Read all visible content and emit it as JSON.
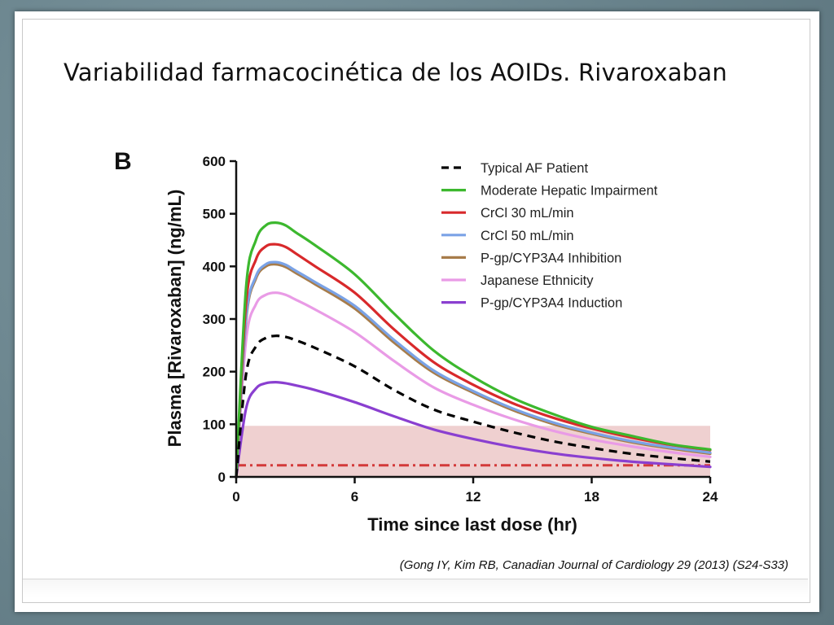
{
  "slide": {
    "title": "Variabilidad farmacocinética  de los AOIDs. Rivaroxaban",
    "citation": "(Gong IY, Kim RB, Canadian Journal of Cardiology 29 (2013) (S24-S33)"
  },
  "chart_data": {
    "type": "line",
    "panel_label": "B",
    "xlabel": "Time since last dose (hr)",
    "ylabel": "Plasma [Rivaroxaban] (ng/mL)",
    "xlim": [
      0,
      24
    ],
    "ylim": [
      0,
      600
    ],
    "xticks": [
      0,
      6,
      12,
      18,
      24
    ],
    "yticks": [
      0,
      100,
      200,
      300,
      400,
      500,
      600
    ],
    "grid": false,
    "legend_position": "top-right",
    "shaded_band": {
      "y_from": 0,
      "y_to": 97,
      "color": "#ecc8c8"
    },
    "reference_line": {
      "y": 22,
      "style": "dash-dot",
      "color": "#d33a3a"
    },
    "series": [
      {
        "name": "Typical AF Patient",
        "color": "#000000",
        "dashed": true,
        "x": [
          0,
          0.5,
          1,
          1.5,
          2,
          2.5,
          3,
          4,
          6,
          8,
          10,
          12,
          14,
          16,
          18,
          20,
          22,
          24
        ],
        "y": [
          0,
          195,
          248,
          264,
          268,
          266,
          260,
          245,
          210,
          165,
          128,
          105,
          85,
          68,
          55,
          44,
          36,
          29
        ]
      },
      {
        "name": "Moderate Hepatic Impairment",
        "color": "#3cb82e",
        "x": [
          0,
          0.5,
          1,
          1.5,
          2,
          2.5,
          3,
          4,
          6,
          8,
          10,
          12,
          14,
          16,
          18,
          20,
          22,
          24
        ],
        "y": [
          0,
          360,
          450,
          478,
          483,
          478,
          465,
          440,
          385,
          310,
          240,
          190,
          150,
          120,
          95,
          78,
          62,
          52
        ]
      },
      {
        "name": "CrCl 30 mL/min",
        "color": "#d8292b",
        "x": [
          0,
          0.5,
          1,
          1.5,
          2,
          2.5,
          3,
          4,
          6,
          8,
          10,
          12,
          14,
          16,
          18,
          20,
          22,
          24
        ],
        "y": [
          0,
          330,
          413,
          438,
          442,
          437,
          425,
          400,
          350,
          280,
          218,
          175,
          140,
          113,
          92,
          75,
          61,
          51
        ]
      },
      {
        "name": "CrCl 50 mL/min",
        "color": "#7aa2e6",
        "x": [
          0,
          0.5,
          1,
          1.5,
          2,
          2.5,
          3,
          4,
          6,
          8,
          10,
          12,
          14,
          16,
          18,
          20,
          22,
          24
        ],
        "y": [
          0,
          302,
          381,
          404,
          408,
          403,
          392,
          370,
          325,
          260,
          202,
          163,
          130,
          104,
          84,
          68,
          56,
          46
        ]
      },
      {
        "name": "P-gp/CYP3A4 Inhibition",
        "color": "#a77c4a",
        "x": [
          0,
          0.5,
          1,
          1.5,
          2,
          2.5,
          3,
          4,
          6,
          8,
          10,
          12,
          14,
          16,
          18,
          20,
          22,
          24
        ],
        "y": [
          0,
          298,
          377,
          400,
          404,
          399,
          388,
          366,
          320,
          255,
          198,
          160,
          127,
          101,
          82,
          66,
          54,
          44
        ]
      },
      {
        "name": "Japanese Ethnicity",
        "color": "#e99be6",
        "x": [
          0,
          0.5,
          1,
          1.5,
          2,
          2.5,
          3,
          4,
          6,
          8,
          10,
          12,
          14,
          16,
          18,
          20,
          22,
          24
        ],
        "y": [
          0,
          260,
          328,
          346,
          350,
          346,
          337,
          318,
          275,
          220,
          170,
          137,
          110,
          88,
          71,
          58,
          47,
          38
        ]
      },
      {
        "name": "P-gp/CYP3A4 Induction",
        "color": "#8a3fd0",
        "x": [
          0,
          0.5,
          1,
          1.5,
          2,
          2.5,
          3,
          4,
          6,
          8,
          10,
          12,
          14,
          16,
          18,
          20,
          22,
          24
        ],
        "y": [
          0,
          130,
          168,
          178,
          180,
          178,
          174,
          165,
          142,
          115,
          90,
          72,
          57,
          45,
          36,
          29,
          24,
          19
        ]
      }
    ]
  }
}
